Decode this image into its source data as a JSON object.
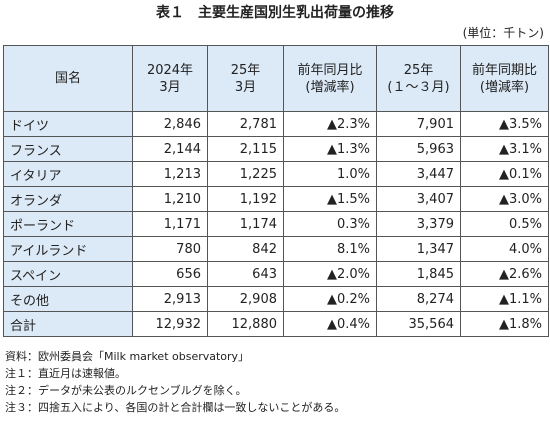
{
  "title": "表１　主要生産国別生乳出荷量の推移",
  "unit": "(単位：千トン)",
  "table": {
    "header": [
      [
        "国名"
      ],
      [
        "2024年",
        "3月"
      ],
      [
        "25年",
        "3月"
      ],
      [
        "前年同月比",
        "(増減率)"
      ],
      [
        "25年",
        "(１～３月)"
      ],
      [
        "前年同期比",
        "(増減率)"
      ]
    ],
    "rows": [
      [
        "ドイツ",
        "2,846",
        "2,781",
        "▲2.3%",
        "7,901",
        "▲3.5%"
      ],
      [
        "フランス",
        "2,144",
        "2,115",
        "▲1.3%",
        "5,963",
        "▲3.1%"
      ],
      [
        "イタリア",
        "1,213",
        "1,225",
        "1.0%",
        "3,447",
        "▲0.1%"
      ],
      [
        "オランダ",
        "1,210",
        "1,192",
        "▲1.5%",
        "3,407",
        "▲3.0%"
      ],
      [
        "ポーランド",
        "1,171",
        "1,174",
        "0.3%",
        "3,379",
        "0.5%"
      ],
      [
        "アイルランド",
        "780",
        "842",
        "8.1%",
        "1,347",
        "4.0%"
      ],
      [
        "スペイン",
        "656",
        "643",
        "▲2.0%",
        "1,845",
        "▲2.6%"
      ],
      [
        "その他",
        "2,913",
        "2,908",
        "▲0.2%",
        "8,274",
        "▲1.1%"
      ],
      [
        "合計",
        "12,932",
        "12,880",
        "▲0.4%",
        "35,564",
        "▲1.8%"
      ]
    ]
  },
  "notes": [
    "資料：欧州委員会「Milk market observatory」",
    "注１：直近月は速報値。",
    "注２：データが未公表のルクセンブルグを除く。",
    "注３：四捨五入により、各国の計と合計欄は一致しないことがある。"
  ]
}
